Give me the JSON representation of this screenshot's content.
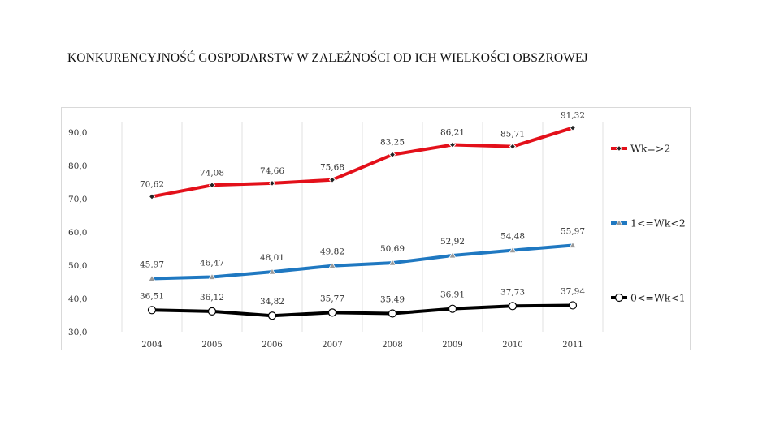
{
  "slide_title": "KONKURENCYJNOŚĆ GOSPODARSTW W ZALEŻNOŚCI OD ICH WIELKOŚCI OBSZROWEJ",
  "chart_data": {
    "type": "line",
    "title": "",
    "xlabel": "",
    "ylabel": "",
    "ylim": [
      30,
      90
    ],
    "yticks": [
      "90,0",
      "80,0",
      "70,0",
      "60,0",
      "50,0",
      "40,0",
      "30,0"
    ],
    "categories": [
      "2004",
      "2005",
      "2006",
      "2007",
      "2008",
      "2009",
      "2010",
      "2011"
    ],
    "grid": "vertical",
    "legend_position": "right",
    "series": [
      {
        "name": "Wk=>2",
        "color": "#e3101a",
        "marker": "diamond",
        "values": [
          70.62,
          74.08,
          74.66,
          75.68,
          83.25,
          86.21,
          85.71,
          91.32
        ],
        "labels": [
          "70,62",
          "74,08",
          "74,66",
          "75,68",
          "83,25",
          "86,21",
          "85,71",
          "91,32"
        ]
      },
      {
        "name": "1<=Wk<2",
        "color": "#1f78c1",
        "marker": "triangle",
        "values": [
          45.97,
          46.47,
          48.01,
          49.82,
          50.69,
          52.92,
          54.48,
          55.97
        ],
        "labels": [
          "45,97",
          "46,47",
          "48,01",
          "49,82",
          "50,69",
          "52,92",
          "54,48",
          "55,97"
        ]
      },
      {
        "name": "0<=Wk<1",
        "color": "#000000",
        "marker": "circle",
        "values": [
          36.51,
          36.12,
          34.82,
          35.77,
          35.49,
          36.91,
          37.73,
          37.94
        ],
        "labels": [
          "36,51",
          "36,12",
          "34,82",
          "35,77",
          "35,49",
          "36,91",
          "37,73",
          "37,94"
        ]
      }
    ]
  }
}
